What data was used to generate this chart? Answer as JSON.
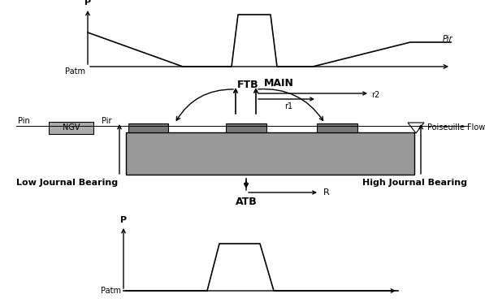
{
  "bg_color": "#ffffff",
  "rotor_color": "#999999",
  "pad_color": "#777777",
  "ngv_color": "#aaaaaa",
  "ftb_label": "FTB",
  "atb_label": "ATB",
  "main_label": "MAIN",
  "pir_label": "Pir",
  "patm_label": "Patm",
  "p_label": "P",
  "r_label": "R",
  "r1_label": "r1",
  "r2_label": "r2",
  "pin_label": "Pin",
  "ngv_label": "NGV",
  "poiseuille_label": "Poiseuille Flow",
  "low_journal_label": "Low Journal Bearing",
  "high_journal_label": "High Journal Bearing",
  "fig_width": 5.97,
  "fig_height": 3.78,
  "dpi": 100
}
